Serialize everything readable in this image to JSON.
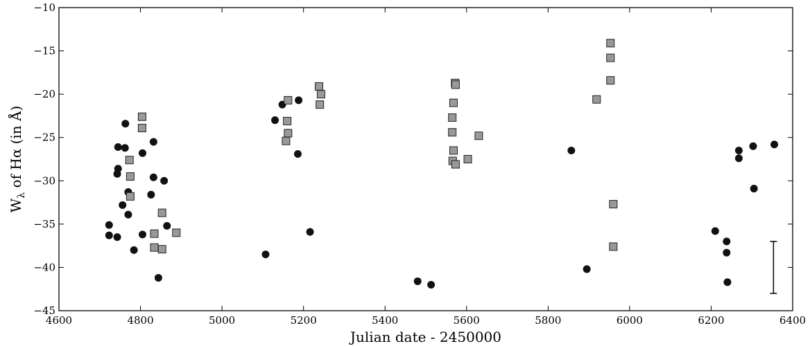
{
  "chart_data": {
    "type": "scatter",
    "xlabel": "Julian date - 2450000",
    "ylabel": "W",
    "ylabel_sub": "λ",
    "ylabel_rest": " of Hα (in Å)",
    "xlim": [
      4600,
      6400
    ],
    "ylim": [
      -45,
      -10
    ],
    "x_ticks": [
      4600,
      4800,
      5000,
      5200,
      5400,
      5600,
      5800,
      6000,
      6200,
      6400
    ],
    "y_ticks": [
      -45,
      -40,
      -35,
      -30,
      -25,
      -20,
      -15,
      -10
    ],
    "x_tick_labels": [
      "4600",
      "4800",
      "5000",
      "5200",
      "5400",
      "5600",
      "5800",
      "6000",
      "6200",
      "6400"
    ],
    "y_tick_labels": [
      "−45",
      "−40",
      "−35",
      "−30",
      "−25",
      "−20",
      "−15",
      "−10"
    ],
    "grid": false,
    "colors": {
      "circle": "#111111",
      "square_fill": "#999999",
      "square_edge": "#222222"
    },
    "series": [
      {
        "marker": "circle",
        "points": [
          [
            4723,
            -35.1
          ],
          [
            4723,
            -36.3
          ],
          [
            4743,
            -36.5
          ],
          [
            4743,
            -29.2
          ],
          [
            4745,
            -28.6
          ],
          [
            4745,
            -26.1
          ],
          [
            4756,
            -32.8
          ],
          [
            4762,
            -26.2
          ],
          [
            4763,
            -23.4
          ],
          [
            4770,
            -31.3
          ],
          [
            4770,
            -33.9
          ],
          [
            4784,
            -38.0
          ],
          [
            4805,
            -26.8
          ],
          [
            4805,
            -36.2
          ],
          [
            4826,
            -31.6
          ],
          [
            4832,
            -25.5
          ],
          [
            4832,
            -29.6
          ],
          [
            4844,
            -41.2
          ],
          [
            4858,
            -30.0
          ],
          [
            4865,
            -35.2
          ],
          [
            5107,
            -38.5
          ],
          [
            5130,
            -23.0
          ],
          [
            5148,
            -21.2
          ],
          [
            5186,
            -26.9
          ],
          [
            5188,
            -20.7
          ],
          [
            5216,
            -35.9
          ],
          [
            5480,
            -41.6
          ],
          [
            5513,
            -42.0
          ],
          [
            5857,
            -26.5
          ],
          [
            5895,
            -40.2
          ],
          [
            6210,
            -35.8
          ],
          [
            6238,
            -37.0
          ],
          [
            6238,
            -38.3
          ],
          [
            6240,
            -41.7
          ],
          [
            6268,
            -26.5
          ],
          [
            6268,
            -27.4
          ],
          [
            6303,
            -26.0
          ],
          [
            6305,
            -30.9
          ],
          [
            6355,
            -25.8
          ]
        ]
      },
      {
        "marker": "square",
        "points": [
          [
            4773,
            -27.6
          ],
          [
            4775,
            -29.5
          ],
          [
            4775,
            -31.8
          ],
          [
            4804,
            -22.6
          ],
          [
            4804,
            -23.9
          ],
          [
            4834,
            -36.1
          ],
          [
            4834,
            -37.7
          ],
          [
            4853,
            -33.7
          ],
          [
            4853,
            -37.9
          ],
          [
            4888,
            -36.0
          ],
          [
            5157,
            -25.4
          ],
          [
            5160,
            -23.1
          ],
          [
            5162,
            -20.7
          ],
          [
            5162,
            -24.5
          ],
          [
            5238,
            -19.1
          ],
          [
            5240,
            -21.2
          ],
          [
            5243,
            -20.0
          ],
          [
            5565,
            -22.7
          ],
          [
            5565,
            -24.4
          ],
          [
            5566,
            -27.7
          ],
          [
            5568,
            -21.0
          ],
          [
            5568,
            -26.5
          ],
          [
            5572,
            -18.7
          ],
          [
            5573,
            -18.9
          ],
          [
            5573,
            -28.1
          ],
          [
            5603,
            -27.5
          ],
          [
            5630,
            -24.8
          ],
          [
            5919,
            -20.6
          ],
          [
            5953,
            -14.1
          ],
          [
            5953,
            -15.8
          ],
          [
            5953,
            -18.4
          ],
          [
            5960,
            -32.7
          ],
          [
            5960,
            -37.6
          ]
        ]
      }
    ],
    "error_bar": {
      "x": 6353,
      "y_low": -43.0,
      "y_high": -37.0
    }
  }
}
